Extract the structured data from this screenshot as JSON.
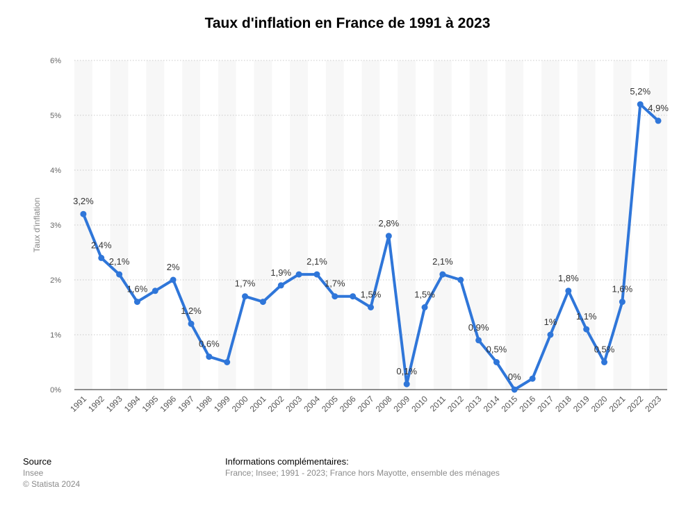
{
  "chart_data": {
    "type": "line",
    "title": "Taux d'inflation en France de 1991 à 2023",
    "xlabel": "",
    "ylabel": "Taux d'inflation",
    "ylim": [
      0,
      6
    ],
    "yticks": [
      "0%",
      "1%",
      "2%",
      "3%",
      "4%",
      "5%",
      "6%"
    ],
    "categories": [
      "1991",
      "1992",
      "1993",
      "1994",
      "1995",
      "1996",
      "1997",
      "1998",
      "1999",
      "2000",
      "2001",
      "2002",
      "2003",
      "2004",
      "2005",
      "2006",
      "2007",
      "2008",
      "2009",
      "2010",
      "2011",
      "2012",
      "2013",
      "2014",
      "2015",
      "2016",
      "2017",
      "2018",
      "2019",
      "2020",
      "2021",
      "2022",
      "2023"
    ],
    "series": [
      {
        "name": "Taux d'inflation",
        "color": "#2f76d9",
        "values": [
          3.2,
          2.4,
          2.1,
          1.6,
          1.8,
          2.0,
          1.2,
          0.6,
          0.5,
          1.7,
          1.6,
          1.9,
          2.1,
          2.1,
          1.7,
          1.7,
          1.5,
          2.8,
          0.1,
          1.5,
          2.1,
          2.0,
          0.9,
          0.5,
          0.0,
          0.2,
          1.0,
          1.8,
          1.1,
          0.5,
          1.6,
          5.2,
          4.9
        ]
      }
    ],
    "data_labels": [
      {
        "index": 0,
        "text": "3,2%"
      },
      {
        "index": 1,
        "text": "2,4%"
      },
      {
        "index": 2,
        "text": "2,1%"
      },
      {
        "index": 3,
        "text": "1,6%"
      },
      {
        "index": 5,
        "text": "2%"
      },
      {
        "index": 6,
        "text": "1,2%"
      },
      {
        "index": 7,
        "text": "0,6%"
      },
      {
        "index": 9,
        "text": "1,7%"
      },
      {
        "index": 11,
        "text": "1,9%"
      },
      {
        "index": 13,
        "text": "2,1%"
      },
      {
        "index": 14,
        "text": "1,7%"
      },
      {
        "index": 16,
        "text": "1,5%"
      },
      {
        "index": 17,
        "text": "2,8%"
      },
      {
        "index": 18,
        "text": "0,1%"
      },
      {
        "index": 19,
        "text": "1,5%"
      },
      {
        "index": 20,
        "text": "2,1%"
      },
      {
        "index": 22,
        "text": "0,9%"
      },
      {
        "index": 23,
        "text": "0,5%"
      },
      {
        "index": 24,
        "text": "0%"
      },
      {
        "index": 26,
        "text": "1%"
      },
      {
        "index": 27,
        "text": "1,8%"
      },
      {
        "index": 28,
        "text": "1,1%"
      },
      {
        "index": 29,
        "text": "0,5%"
      },
      {
        "index": 30,
        "text": "1,6%"
      },
      {
        "index": 31,
        "text": "5,2%"
      },
      {
        "index": 32,
        "text": "4,9%"
      }
    ]
  },
  "footer": {
    "source_heading": "Source",
    "source_name": "Insee",
    "copyright": "© Statista 2024",
    "info_heading": "Informations complémentaires:",
    "info_text": "France; Insee; 1991 - 2023; France hors Mayotte, ensemble des ménages"
  }
}
